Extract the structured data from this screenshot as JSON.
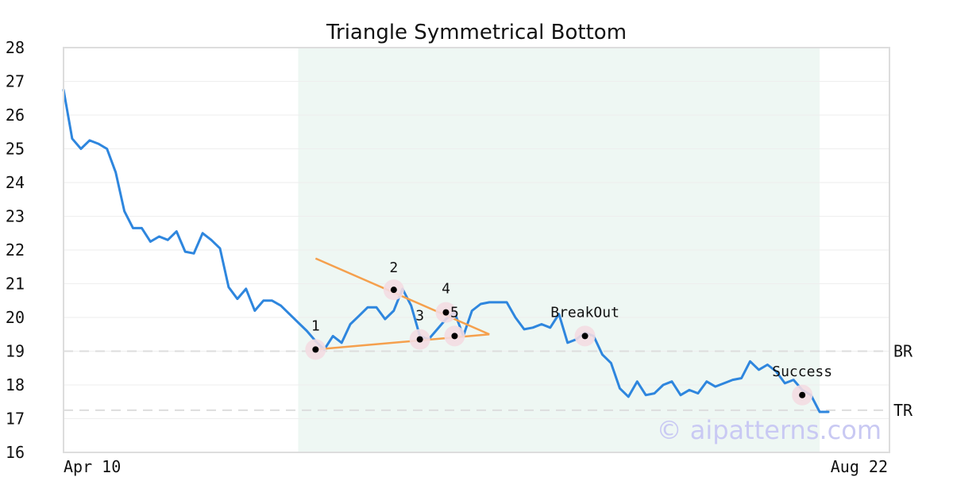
{
  "chart_data": {
    "type": "line",
    "title": "Triangle Symmetrical Bottom",
    "ylim": [
      16,
      28
    ],
    "y_ticks": [
      "16",
      "17",
      "18",
      "19",
      "20",
      "21",
      "22",
      "23",
      "24",
      "25",
      "26",
      "27",
      "28"
    ],
    "x_labels": {
      "start": "Apr 10",
      "end": "Aug 22"
    },
    "grid": true,
    "series": [
      {
        "values": [
          26.75,
          25.3,
          25.0,
          25.25,
          25.15,
          25.0,
          24.3,
          23.15,
          22.65,
          22.65,
          22.25,
          22.4,
          22.3,
          22.55,
          21.95,
          21.9,
          22.5,
          22.3,
          22.05,
          20.9,
          20.55,
          20.85,
          20.2,
          20.5,
          20.5,
          20.35,
          20.1,
          19.85,
          19.6,
          19.3,
          19.05,
          19.45,
          19.25,
          19.8,
          20.05,
          20.3,
          20.3,
          19.95,
          20.2,
          20.85,
          20.35,
          19.45,
          19.35,
          19.65,
          19.95,
          20.15,
          19.45,
          20.2,
          20.4,
          20.45,
          20.45,
          20.45,
          20.0,
          19.65,
          19.7,
          19.8,
          19.7,
          20.1,
          19.25,
          19.35,
          19.55,
          19.45,
          18.9,
          18.65,
          17.9,
          17.65,
          18.1,
          17.7,
          17.75,
          18.0,
          18.1,
          17.7,
          17.85,
          17.75,
          18.1,
          17.95,
          18.05,
          18.15,
          18.2,
          18.7,
          18.45,
          18.6,
          18.4,
          18.05,
          18.15,
          17.85,
          17.7,
          17.2,
          17.2
        ]
      }
    ],
    "highlight_range": [
      27,
      87
    ],
    "trendlines": [
      {
        "x": [
          29,
          49
        ],
        "y": [
          21.75,
          19.5
        ]
      },
      {
        "x": [
          29,
          49
        ],
        "y": [
          19.05,
          19.5
        ]
      }
    ],
    "reference_lines": [
      {
        "label": "BR",
        "y": 19.0
      },
      {
        "label": "TR",
        "y": 17.25
      }
    ],
    "points": [
      {
        "label": "1",
        "x": 29,
        "y": 19.05
      },
      {
        "label": "2",
        "x": 38,
        "y": 20.82
      },
      {
        "label": "3",
        "x": 41,
        "y": 19.35
      },
      {
        "label": "4",
        "x": 44,
        "y": 20.15
      },
      {
        "label": "5",
        "x": 45,
        "y": 19.45
      },
      {
        "label": "BreakOut",
        "x": 60,
        "y": 19.45
      },
      {
        "label": "Success",
        "x": 85,
        "y": 17.7
      }
    ],
    "colors": {
      "line": "#2e86de",
      "trendline": "#f5a04d",
      "highlight": "#eef7f3",
      "reference": "#dddddd",
      "marker_halo": "#f3dce2"
    }
  },
  "watermark": "© aipatterns.com"
}
